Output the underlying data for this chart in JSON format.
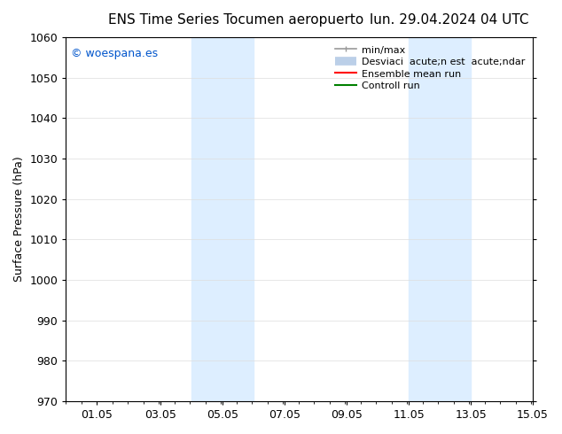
{
  "title_left": "ENS Time Series Tocumen aeropuerto",
  "title_right": "lun. 29.04.2024 04 UTC",
  "ylabel": "Surface Pressure (hPa)",
  "ylim": [
    970,
    1060
  ],
  "yticks": [
    970,
    980,
    990,
    1000,
    1010,
    1020,
    1030,
    1040,
    1050,
    1060
  ],
  "xlim": [
    0.0,
    15.05
  ],
  "xtick_positions": [
    1.0,
    3.05,
    5.05,
    7.05,
    9.05,
    11.05,
    13.05,
    15.05
  ],
  "xtick_labels": [
    "01.05",
    "03.05",
    "05.05",
    "07.05",
    "09.05",
    "11.05",
    "13.05",
    "15.05"
  ],
  "shaded_bands": [
    {
      "xmin": 4.05,
      "xmax": 6.05
    },
    {
      "xmin": 11.05,
      "xmax": 13.05
    }
  ],
  "shade_color": "#ddeeff",
  "watermark_text": "© woespana.es",
  "watermark_color": "#0055cc",
  "legend_line1": "min/max",
  "legend_line2": "Desviaci  acute;n est  acute;ndar",
  "legend_line3": "Ensemble mean run",
  "legend_line4": "Controll run",
  "bg_color": "#ffffff",
  "grid_color": "#dddddd",
  "title_fontsize": 11,
  "tick_fontsize": 9,
  "ylabel_fontsize": 9,
  "legend_fontsize": 8,
  "watermark_fontsize": 9
}
